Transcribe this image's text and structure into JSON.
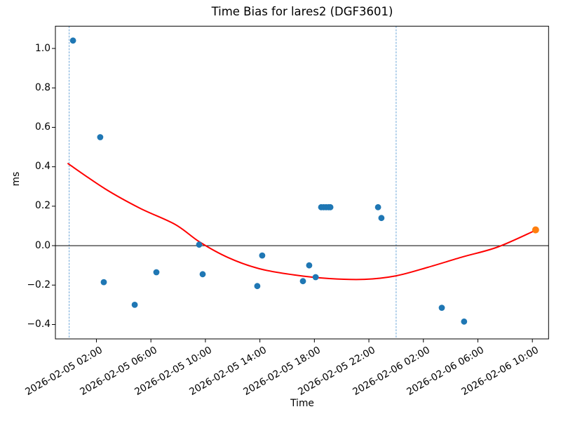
{
  "chart_data": {
    "type": "scatter",
    "title": "Time Bias for lares2 (DGF3601)",
    "xlabel": "Time",
    "ylabel": "ms",
    "grid": false,
    "legend": "none",
    "time_origin": "2026-02-05 00:00",
    "x_unit": "hours since 2026-02-05 00:00",
    "xlim": [
      -1.01,
      35.19
    ],
    "ylim": [
      -0.473,
      1.113
    ],
    "x_ticks": [
      {
        "t": 2,
        "label": "2026-02-05 02:00"
      },
      {
        "t": 6,
        "label": "2026-02-05 06:00"
      },
      {
        "t": 10,
        "label": "2026-02-05 10:00"
      },
      {
        "t": 14,
        "label": "2026-02-05 14:00"
      },
      {
        "t": 18,
        "label": "2026-02-05 18:00"
      },
      {
        "t": 22,
        "label": "2026-02-05 22:00"
      },
      {
        "t": 26,
        "label": "2026-02-06 02:00"
      },
      {
        "t": 30,
        "label": "2026-02-06 06:00"
      },
      {
        "t": 34,
        "label": "2026-02-06 10:00"
      }
    ],
    "y_ticks": [
      {
        "v": 1.0,
        "label": "1.0"
      },
      {
        "v": 0.8,
        "label": "0.8"
      },
      {
        "v": 0.6,
        "label": "0.6"
      },
      {
        "v": 0.4,
        "label": "0.4"
      },
      {
        "v": 0.2,
        "label": "0.2"
      },
      {
        "v": 0.0,
        "label": "0.0"
      },
      {
        "v": -0.2,
        "label": "−0.2"
      },
      {
        "v": -0.4,
        "label": "−0.4"
      }
    ],
    "series": [
      {
        "name": "time-bias-observations",
        "color": "#1f77b4",
        "marker": "circle",
        "points": [
          {
            "time": "2026-02-05 00:15",
            "t": 0.28,
            "ms": 1.04
          },
          {
            "time": "2026-02-05 02:15",
            "t": 2.28,
            "ms": 0.55
          },
          {
            "time": "2026-02-05 02:30",
            "t": 2.54,
            "ms": -0.185
          },
          {
            "time": "2026-02-05 04:50",
            "t": 4.81,
            "ms": -0.3
          },
          {
            "time": "2026-02-05 06:25",
            "t": 6.4,
            "ms": -0.135
          },
          {
            "time": "2026-02-05 09:30",
            "t": 9.54,
            "ms": 0.005
          },
          {
            "time": "2026-02-05 09:50",
            "t": 9.8,
            "ms": -0.145
          },
          {
            "time": "2026-02-05 13:50",
            "t": 13.81,
            "ms": -0.205
          },
          {
            "time": "2026-02-05 14:10",
            "t": 14.17,
            "ms": -0.05
          },
          {
            "time": "2026-02-05 17:10",
            "t": 17.16,
            "ms": -0.18
          },
          {
            "time": "2026-02-05 17:35",
            "t": 17.62,
            "ms": -0.1
          },
          {
            "time": "2026-02-05 18:05",
            "t": 18.09,
            "ms": -0.16
          },
          {
            "time": "2026-02-05 18:30",
            "t": 18.5,
            "ms": 0.195
          },
          {
            "time": "2026-02-05 18:40",
            "t": 18.68,
            "ms": 0.195
          },
          {
            "time": "2026-02-05 18:50",
            "t": 18.86,
            "ms": 0.195
          },
          {
            "time": "2026-02-05 19:00",
            "t": 19.04,
            "ms": 0.195
          },
          {
            "time": "2026-02-05 19:10",
            "t": 19.17,
            "ms": 0.195
          },
          {
            "time": "2026-02-05 22:40",
            "t": 22.67,
            "ms": 0.195
          },
          {
            "time": "2026-02-05 22:55",
            "t": 22.92,
            "ms": 0.14
          },
          {
            "time": "2026-02-06 03:20",
            "t": 27.35,
            "ms": -0.315
          },
          {
            "time": "2026-02-06 05:00",
            "t": 28.99,
            "ms": -0.385
          }
        ]
      },
      {
        "name": "latest-observation",
        "color": "#ff7f0e",
        "marker": "circle",
        "points": [
          {
            "time": "2026-02-06 10:15",
            "t": 34.24,
            "ms": 0.08
          }
        ]
      }
    ],
    "fit_curve": {
      "name": "polynomial-fit",
      "color": "#ff0000",
      "points": [
        [
          -0.08,
          0.416
        ],
        [
          2.64,
          0.288
        ],
        [
          5.22,
          0.189
        ],
        [
          7.79,
          0.107
        ],
        [
          9.59,
          0.018
        ],
        [
          11.65,
          -0.06
        ],
        [
          13.97,
          -0.117
        ],
        [
          16.54,
          -0.149
        ],
        [
          19.11,
          -0.167
        ],
        [
          21.68,
          -0.171
        ],
        [
          24.0,
          -0.153
        ],
        [
          26.32,
          -0.11
        ],
        [
          28.89,
          -0.057
        ],
        [
          31.46,
          -0.007
        ],
        [
          34.24,
          0.078
        ]
      ]
    },
    "zero_line": {
      "y": 0.0,
      "color": "#000000"
    },
    "vlines": [
      {
        "time": "2026-02-05 00:00",
        "t": 0.0
      },
      {
        "time": "2026-02-06 00:00",
        "t": 24.0
      }
    ],
    "vline_color": "#6ca6d8"
  }
}
